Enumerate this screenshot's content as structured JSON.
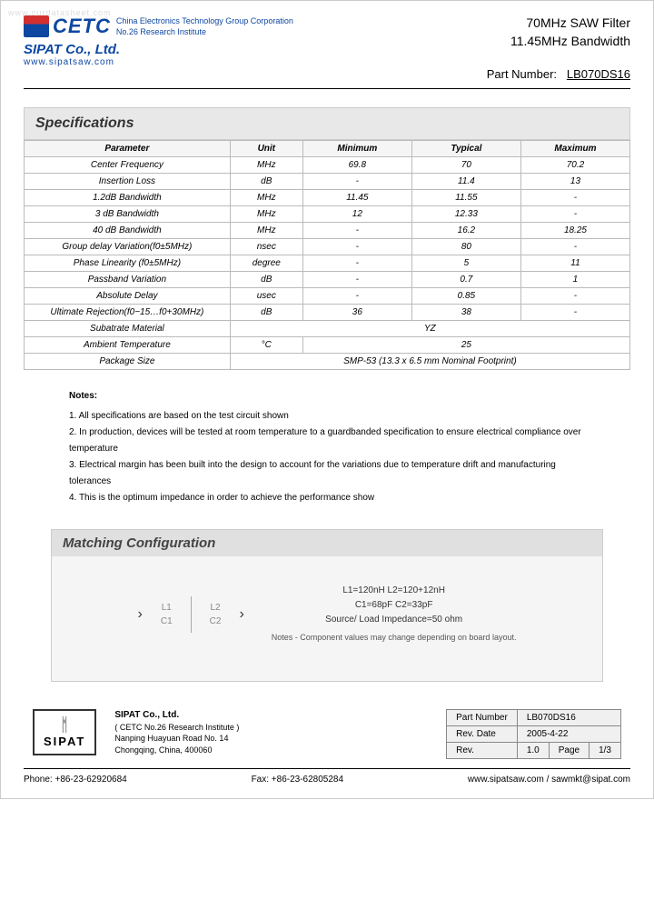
{
  "watermark": "www.ourdatasheet.com",
  "header": {
    "cetc": "CETC",
    "corp_line1": "China Electronics Technology Group Corporation",
    "corp_line2": "No.26 Research Institute",
    "sipat": "SIPAT Co., Ltd.",
    "url": "www.sipatsaw.com",
    "product_line1": "70MHz SAW Filter",
    "product_line2": "11.45MHz Bandwidth",
    "part_label": "Part Number:",
    "part_value": "LB070DS16"
  },
  "spec": {
    "title": "Specifications",
    "columns": [
      "Parameter",
      "Unit",
      "Minimum",
      "Typical",
      "Maximum"
    ],
    "rows": [
      [
        "Center Frequency",
        "MHz",
        "69.8",
        "70",
        "70.2"
      ],
      [
        "Insertion Loss",
        "dB",
        "-",
        "11.4",
        "13"
      ],
      [
        "1.2dB Bandwidth",
        "MHz",
        "11.45",
        "11.55",
        "-"
      ],
      [
        "3 dB Bandwidth",
        "MHz",
        "12",
        "12.33",
        "-"
      ],
      [
        "40 dB Bandwidth",
        "MHz",
        "-",
        "16.2",
        "18.25"
      ],
      [
        "Group delay Variation(f0±5MHz)",
        "nsec",
        "-",
        "80",
        "-"
      ],
      [
        "Phase Linearity (f0±5MHz)",
        "degree",
        "-",
        "5",
        "11"
      ],
      [
        "Passband Variation",
        "dB",
        "-",
        "0.7",
        "1"
      ],
      [
        "Absolute Delay",
        "usec",
        "-",
        "0.85",
        "-"
      ],
      [
        "Ultimate Rejection(f0−15…f0+30MHz)",
        "dB",
        "36",
        "38",
        "-"
      ]
    ],
    "substrate_label": "Subatrate Material",
    "substrate_value": "YZ",
    "ambient_label": "Ambient Temperature",
    "ambient_unit": "°C",
    "ambient_value": "25",
    "package_label": "Package Size",
    "package_value": "SMP-53   (13.3 x 6.5 mm Nominal Footprint)"
  },
  "notes": {
    "title": "Notes:",
    "items": [
      "1. All specifications are based on the test circuit shown",
      "2. In production, devices will be tested at room temperature to a guardbanded specification to ensure electrical compliance over temperature",
      "3. Electrical margin has been built into the design to account for the variations due to temperature drift and manufacturing tolerances",
      "4. This is the optimum impedance in order to achieve the performance show"
    ]
  },
  "matching": {
    "title": "Matching Configuration",
    "labels": {
      "L1": "L1",
      "L2": "L2",
      "C1": "C1",
      "C2": "C2"
    },
    "values_line1": "L1=120nH   L2=120+12nH",
    "values_line2": "C1=68pF   C2=33pF",
    "values_line3": "Source/ Load Impedance=50 ohm",
    "note": "Notes - Component values may change depending on board layout."
  },
  "footer_company": {
    "logo_text": "SIPAT",
    "name": "SIPAT Co., Ltd.",
    "sub": "( CETC No.26 Research Institute )",
    "addr1": "Nanping Huayuan Road No. 14",
    "addr2": "Chongqing, China, 400060"
  },
  "footer_table": {
    "part_label": "Part Number",
    "part_value": "LB070DS16",
    "date_label": "Rev. Date",
    "date_value": "2005-4-22",
    "rev_label": "Rev.",
    "rev_value": "1.0",
    "page_label": "Page",
    "page_value": "1/3"
  },
  "contact": {
    "phone": "Phone: +86-23-62920684",
    "fax": "Fax: +86-23-62805284",
    "web": "www.sipatsaw.com / sawmkt@sipat.com"
  }
}
